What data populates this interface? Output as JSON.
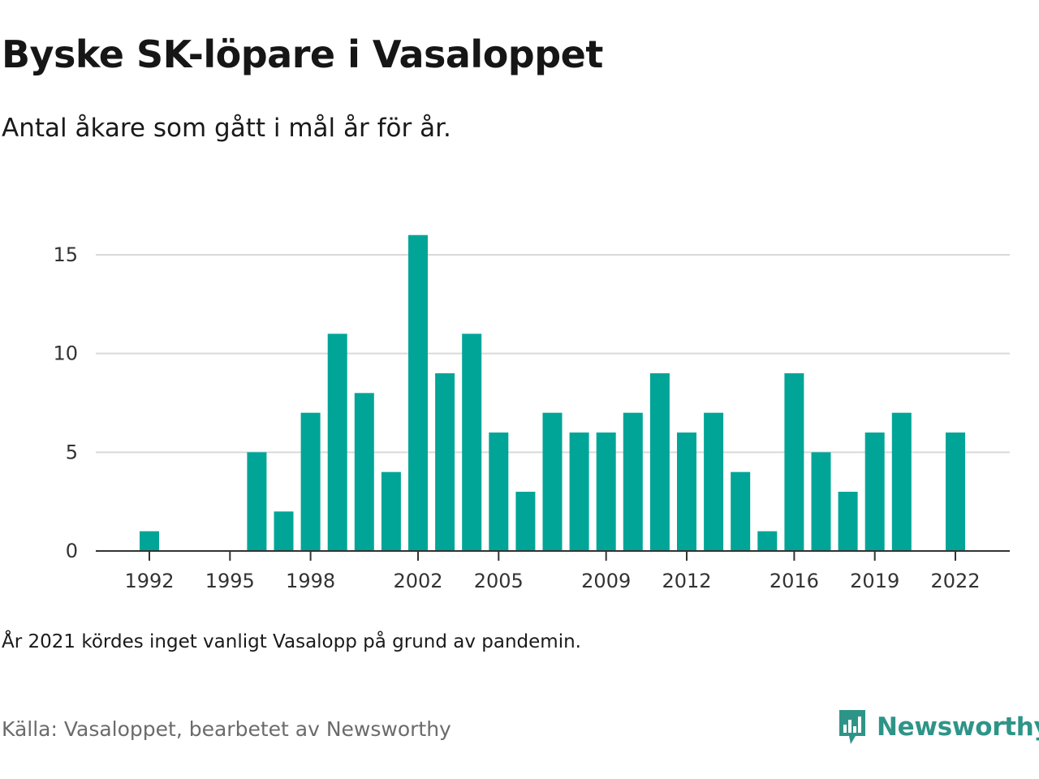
{
  "chart_data": {
    "type": "bar",
    "title": "Byske SK-löpare i Vasaloppet",
    "subtitle": "Antal åkare som gått i mål år för år.",
    "categories": [
      1992,
      1993,
      1994,
      1995,
      1996,
      1997,
      1998,
      1999,
      2000,
      2001,
      2002,
      2003,
      2004,
      2005,
      2006,
      2007,
      2008,
      2009,
      2010,
      2011,
      2012,
      2013,
      2014,
      2015,
      2016,
      2017,
      2018,
      2019,
      2020,
      2021,
      2022
    ],
    "values": [
      1,
      0,
      0,
      0,
      5,
      2,
      7,
      11,
      8,
      4,
      16,
      9,
      11,
      6,
      3,
      7,
      6,
      6,
      7,
      9,
      6,
      7,
      4,
      1,
      9,
      5,
      3,
      6,
      7,
      0,
      6
    ],
    "x_tick_labels": [
      "1992",
      "1995",
      "1998",
      "2002",
      "2005",
      "2009",
      "2012",
      "2016",
      "2019",
      "2022"
    ],
    "y_ticks": [
      0,
      5,
      10,
      15
    ],
    "ylim": [
      0,
      16
    ],
    "xlabel": "",
    "ylabel": "",
    "grid": true,
    "bar_color": "#00a598"
  },
  "note": "År 2021 kördes inget vanligt Vasalopp på grund av pandemin.",
  "source": "Källa: Vasaloppet, bearbetet av Newsworthy",
  "logo": {
    "name": "Newsworthy",
    "icon": "newsworthy-logo-icon",
    "color": "#2f9488"
  }
}
